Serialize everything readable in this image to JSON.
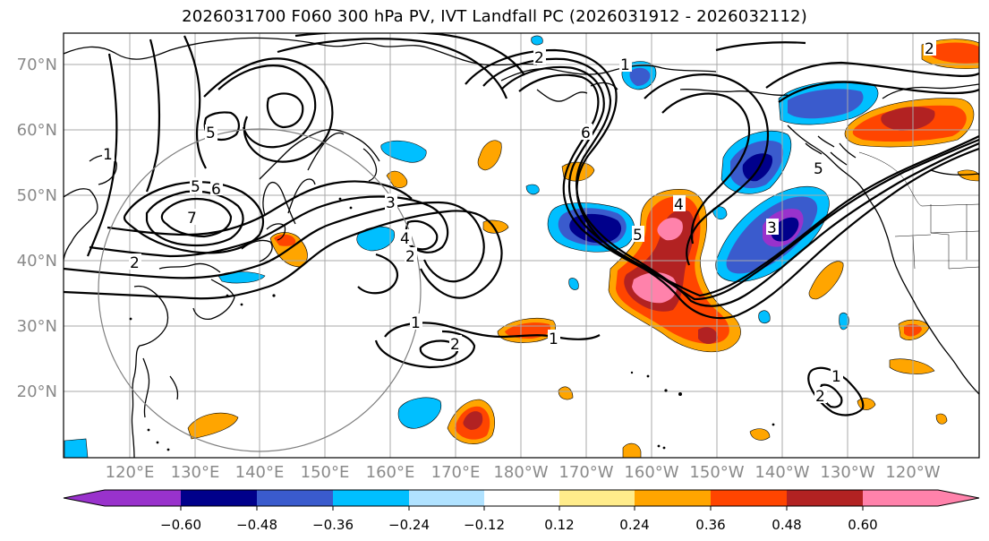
{
  "title": "2026031700 F060 300 hPa PV, IVT Landfall PC (2026031912 - 2026032112)",
  "latitude_labels": [
    "70°N",
    "60°N",
    "50°N",
    "40°N",
    "30°N",
    "20°N"
  ],
  "longitude_labels": [
    "120°E",
    "130°E",
    "140°E",
    "150°E",
    "160°E",
    "170°E",
    "180°W",
    "170°W",
    "160°W",
    "150°W",
    "140°W",
    "130°W",
    "120°W"
  ],
  "contour_labels": [
    "1",
    "2",
    "3",
    "4",
    "5",
    "6",
    "7"
  ],
  "colorbar": {
    "ticks": [
      "−0.60",
      "−0.48",
      "−0.36",
      "−0.24",
      "−0.12",
      "0.12",
      "0.24",
      "0.36",
      "0.48",
      "0.60"
    ],
    "colors": [
      "#9932cc",
      "#00008b",
      "#3a5bcd",
      "#00bfff",
      "#b0e2ff",
      "#ffffff",
      "#ffec8b",
      "#ffa500",
      "#ff4500",
      "#b22222",
      "#ff82ab"
    ]
  },
  "colors": {
    "land_outline": "#000000",
    "grid": "#a9a9a9",
    "axis_label": "#8a8a8a"
  }
}
